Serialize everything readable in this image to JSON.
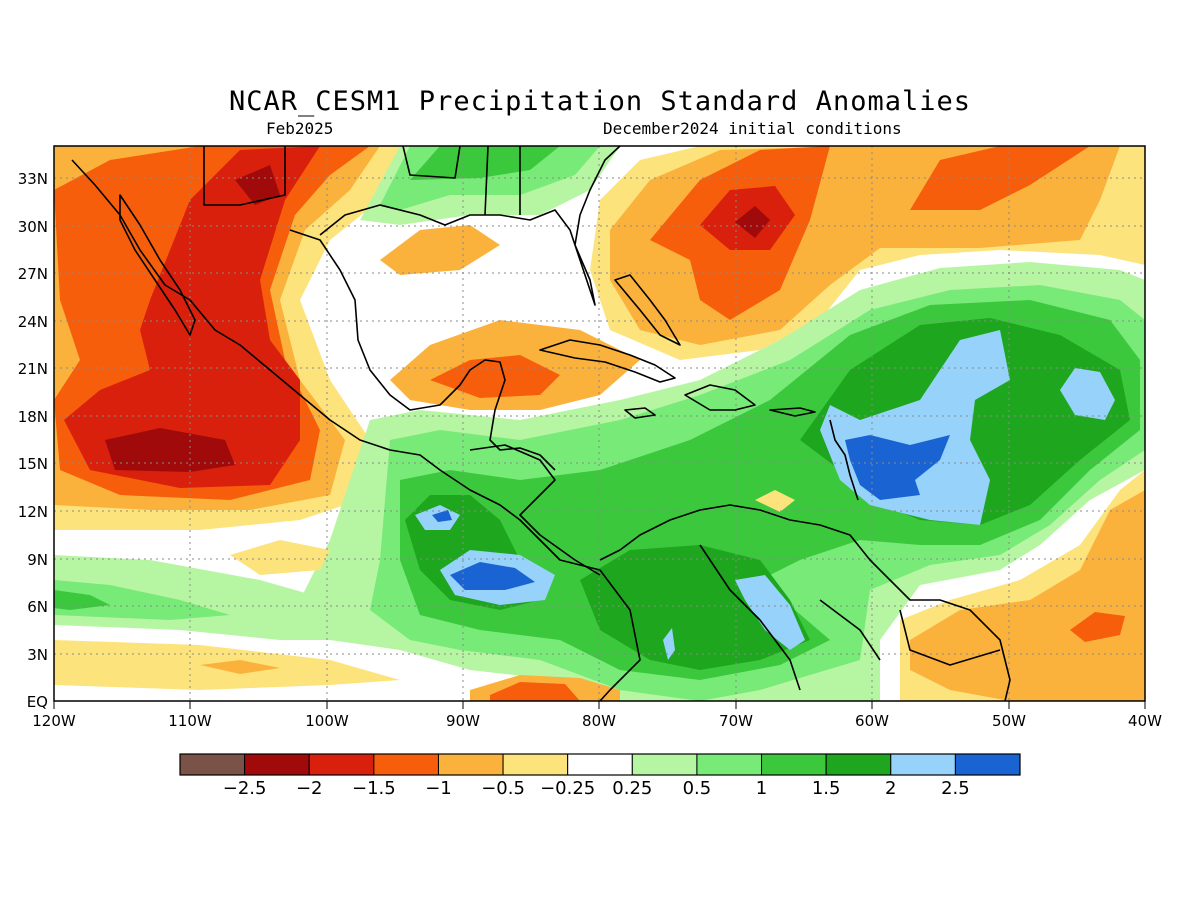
{
  "map": {
    "title": "NCAR_CESM1 Precipitation Standard Anomalies",
    "valid_month": "Feb2025",
    "initial_conditions": "December2024 initial conditions",
    "variable": "Precipitation standard anomaly",
    "region": "Gulf of Mexico, Caribbean and northern South America",
    "lon_range": [
      -120,
      -40
    ],
    "lat_range": [
      0,
      35
    ],
    "grid": true,
    "lat_labels": [
      "33N",
      "30N",
      "27N",
      "24N",
      "21N",
      "18N",
      "15N",
      "12N",
      "9N",
      "6N",
      "3N",
      "EQ"
    ],
    "lon_labels": [
      "120W",
      "110W",
      "100W",
      "90W",
      "80W",
      "70W",
      "60W",
      "50W",
      "40W"
    ]
  },
  "colorbar": {
    "colors": [
      "#7a5248",
      "#a00a0a",
      "#d8200c",
      "#f65e0c",
      "#fbb23c",
      "#fde37c",
      "#ffffff",
      "#b6f6a2",
      "#78ea78",
      "#3cc83c",
      "#1ea61e",
      "#96d2fa",
      "#1964d2"
    ],
    "labels": [
      "−2.5",
      "−2",
      "−1.5",
      "−1",
      "−0.5",
      "−0.25",
      "0.25",
      "0.5",
      "1",
      "1.5",
      "2",
      "2.5"
    ]
  },
  "features": {
    "wet_anomalies": [
      "Caribbean Sea",
      "Lesser Antilles",
      "Colombia / northern South America",
      "Central America Pacific coast",
      "Central Atlantic 15–22N"
    ],
    "dry_anomalies": [
      "Eastern Pacific off Mexico",
      "Mexico",
      "Western Atlantic near 30N",
      "Southern Gulf of Mexico",
      "Equatorial Atlantic off Brazil"
    ]
  }
}
